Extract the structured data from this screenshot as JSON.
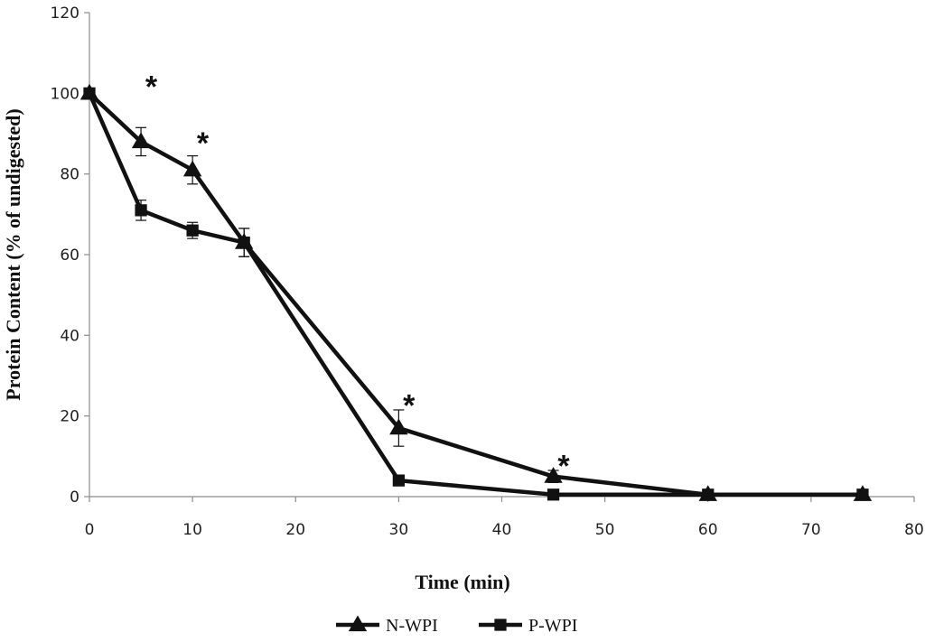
{
  "chart_data": {
    "type": "line",
    "title": "",
    "xlabel": "Time (min)",
    "ylabel": "Protein Content (% of undigested)",
    "xlim": [
      0,
      80
    ],
    "ylim": [
      0,
      120
    ],
    "xticks": [
      0,
      10,
      20,
      30,
      40,
      50,
      60,
      70,
      80
    ],
    "yticks": [
      0,
      20,
      40,
      60,
      80,
      100,
      120
    ],
    "grid": false,
    "legend_position": "bottom-center",
    "series": [
      {
        "name": "N-WPI",
        "marker": "triangle",
        "color": "#111111",
        "x": [
          0,
          5,
          10,
          15,
          30,
          45,
          60,
          75
        ],
        "y": [
          100,
          88,
          81,
          63,
          17,
          5,
          0.5,
          0.5
        ],
        "error": [
          0,
          3.5,
          3.5,
          3.5,
          4.5,
          1.5,
          0,
          0
        ]
      },
      {
        "name": "P-WPI",
        "marker": "square",
        "color": "#111111",
        "x": [
          0,
          5,
          10,
          15,
          30,
          45,
          60,
          75
        ],
        "y": [
          100,
          71,
          66,
          63,
          4,
          0.5,
          0.5,
          0.5
        ],
        "error": [
          0,
          2.5,
          2,
          3.5,
          1,
          0,
          0,
          0
        ]
      }
    ],
    "annotations": [
      {
        "text": "*",
        "x": 6,
        "y": 104
      },
      {
        "text": "*",
        "x": 11,
        "y": 90
      },
      {
        "text": "*",
        "x": 31,
        "y": 25
      },
      {
        "text": "*",
        "x": 46,
        "y": 10
      }
    ]
  }
}
